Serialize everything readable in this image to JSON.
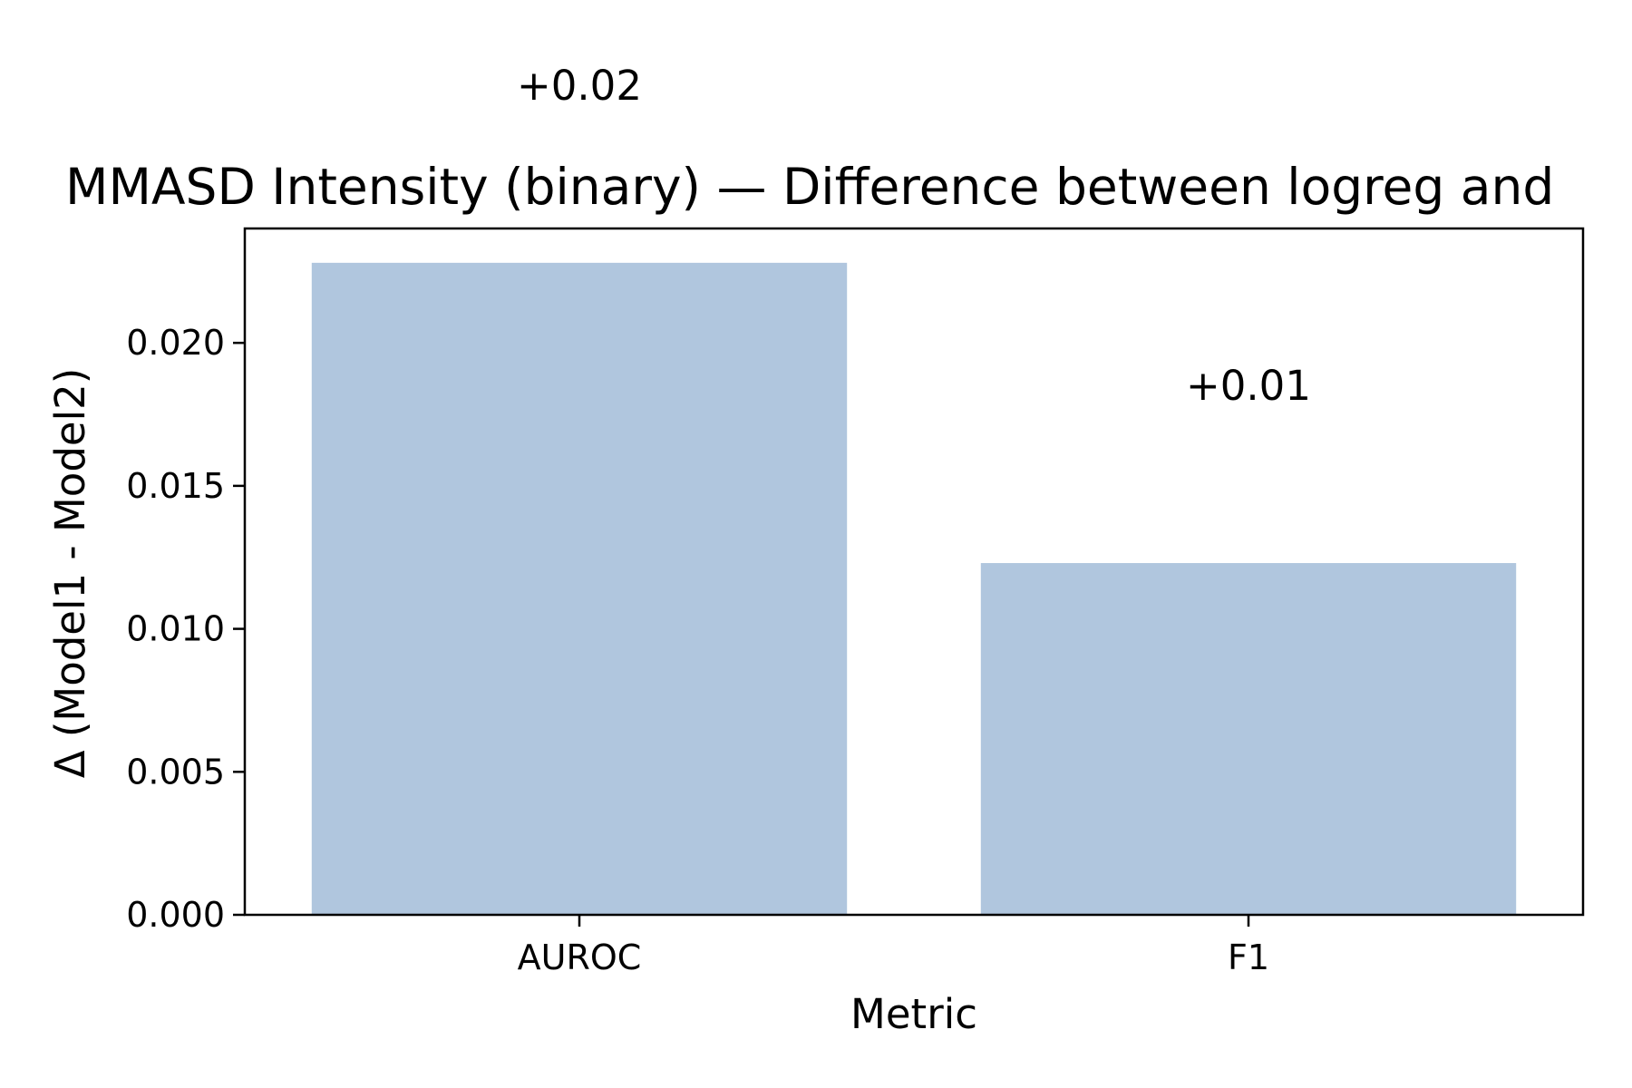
{
  "chart_data": {
    "type": "bar",
    "title": "MMASD Intensity (binary) — Difference between logreg and",
    "xlabel": "Metric",
    "ylabel": "Δ (Model1 - Model2)",
    "categories": [
      "AUROC",
      "F1"
    ],
    "values": [
      0.0228,
      0.0123
    ],
    "data_labels": [
      "+0.02",
      "+0.01"
    ],
    "ylim": [
      0.0,
      0.024
    ],
    "yticks": [
      0.0,
      0.005,
      0.01,
      0.015,
      0.02
    ],
    "ytick_labels": [
      "0.000",
      "0.005",
      "0.010",
      "0.015",
      "0.020"
    ],
    "grid": false,
    "legend": "none",
    "reference_line": {
      "y": 0.0,
      "style": "dashed"
    },
    "bar_color": "#b0c6de",
    "axis_color": "#000000"
  }
}
